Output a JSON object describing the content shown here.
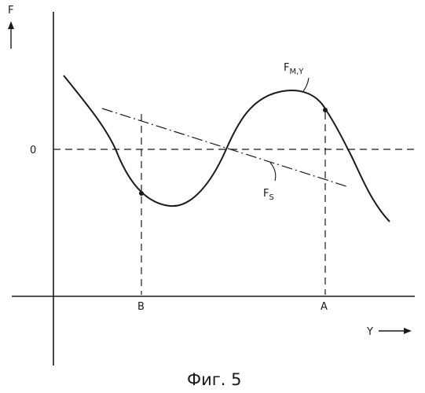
{
  "axis_labels": {
    "y_axis": "F",
    "x_axis": "Y",
    "zero": "0"
  },
  "points": {
    "a": "A",
    "b": "B"
  },
  "curves": {
    "force_main": "F",
    "force_main_sub": "M,Y",
    "force_spring": "F",
    "force_spring_sub": "S"
  },
  "caption": "Фиг. 5",
  "colors": {
    "ink": "#1a1a1a",
    "background": "#ffffff"
  }
}
